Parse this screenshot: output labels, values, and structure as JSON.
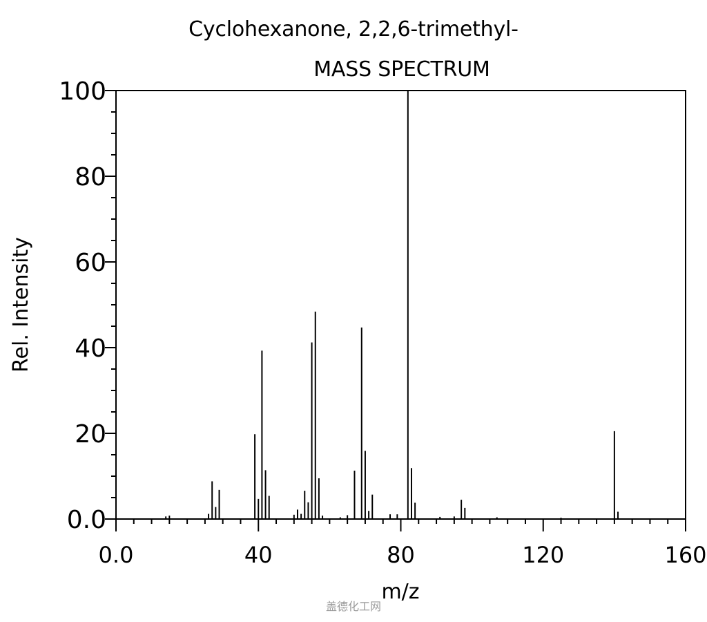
{
  "chart_data": {
    "type": "bar",
    "title": "Cyclohexanone, 2,2,6-trimethyl-",
    "subtitle": "MASS SPECTRUM",
    "xlabel": "m/z",
    "ylabel": "Rel. Intensity",
    "xlim": [
      0,
      160
    ],
    "ylim": [
      0,
      100
    ],
    "x_ticks": [
      "0.0",
      "40",
      "80",
      "120",
      "160"
    ],
    "y_ticks": [
      "0.0",
      "20",
      "40",
      "60",
      "80",
      "100"
    ],
    "x": [
      14,
      15,
      26,
      27,
      28,
      29,
      39,
      40,
      41,
      42,
      43,
      50,
      51,
      52,
      53,
      54,
      55,
      56,
      57,
      58,
      63,
      65,
      67,
      69,
      70,
      71,
      72,
      77,
      79,
      82,
      83,
      84,
      91,
      95,
      97,
      98,
      107,
      125,
      140,
      141
    ],
    "values": [
      0.6,
      0.8,
      1.2,
      8.8,
      2.8,
      6.8,
      19.8,
      4.7,
      39.3,
      11.4,
      5.4,
      1.0,
      2.2,
      1.2,
      6.6,
      3.9,
      41.2,
      48.4,
      9.5,
      0.8,
      0.4,
      0.9,
      11.3,
      44.7,
      15.9,
      1.9,
      5.7,
      1.1,
      1.1,
      100,
      11.9,
      3.8,
      0.5,
      0.6,
      4.5,
      2.6,
      0.4,
      0.3,
      20.5,
      1.7
    ],
    "grid": false,
    "bar_color": "#000000"
  },
  "watermark": "盖德化工网"
}
